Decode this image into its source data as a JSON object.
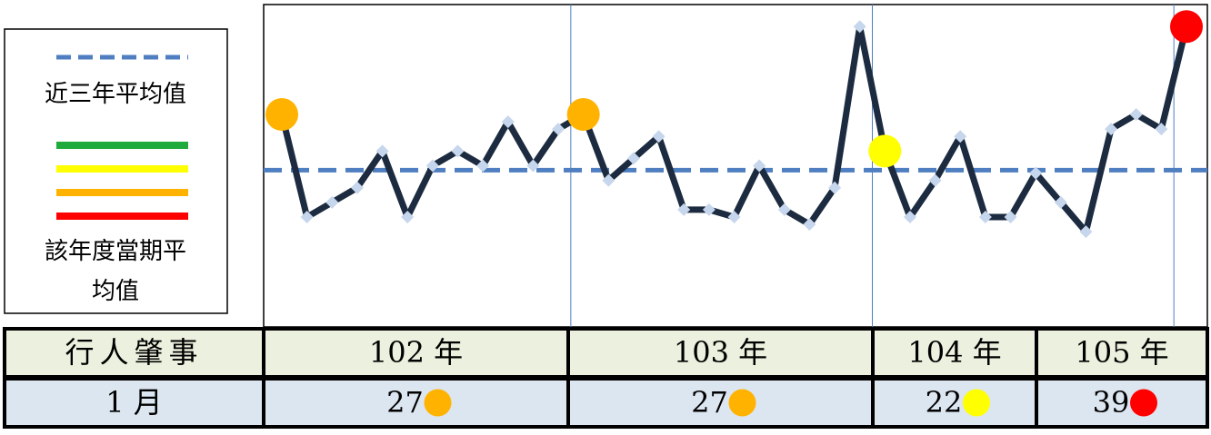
{
  "chart_data": {
    "type": "line",
    "values": [
      27,
      13,
      15,
      17,
      22,
      13,
      20,
      22,
      20,
      26,
      20,
      25,
      27,
      18,
      21,
      24,
      14,
      14,
      13,
      20,
      14,
      12,
      17,
      39,
      22,
      13,
      18,
      24,
      13,
      13,
      19,
      15,
      11,
      25,
      27,
      25,
      39
    ],
    "color": "#1c2b40",
    "marker_color": "#c6d6ec",
    "ylim": [
      -2,
      42
    ],
    "average": {
      "name": "近三年平均值",
      "value": 19.4,
      "color": "#4f7fc0"
    },
    "period_legend": {
      "name": "該年度當期平均值",
      "colors": [
        "#1faa3c",
        "#ffff00",
        "#ffb300",
        "#ff0000"
      ]
    },
    "highlights": [
      {
        "index": 0,
        "color": "#ffb300"
      },
      {
        "index": 12,
        "color": "#ffb300"
      },
      {
        "index": 24,
        "color": "#ffff00"
      },
      {
        "index": 36,
        "color": "#ff0000"
      }
    ]
  },
  "table": {
    "header": [
      "行人肇事",
      "102 年",
      "103 年",
      "104 年",
      "105 年"
    ],
    "rows": [
      [
        "1 月",
        27,
        27,
        22,
        39
      ]
    ],
    "row_colors": [
      [
        null,
        "#ffb300",
        "#ffb300",
        "#ffff00",
        "#ff0000"
      ]
    ]
  }
}
